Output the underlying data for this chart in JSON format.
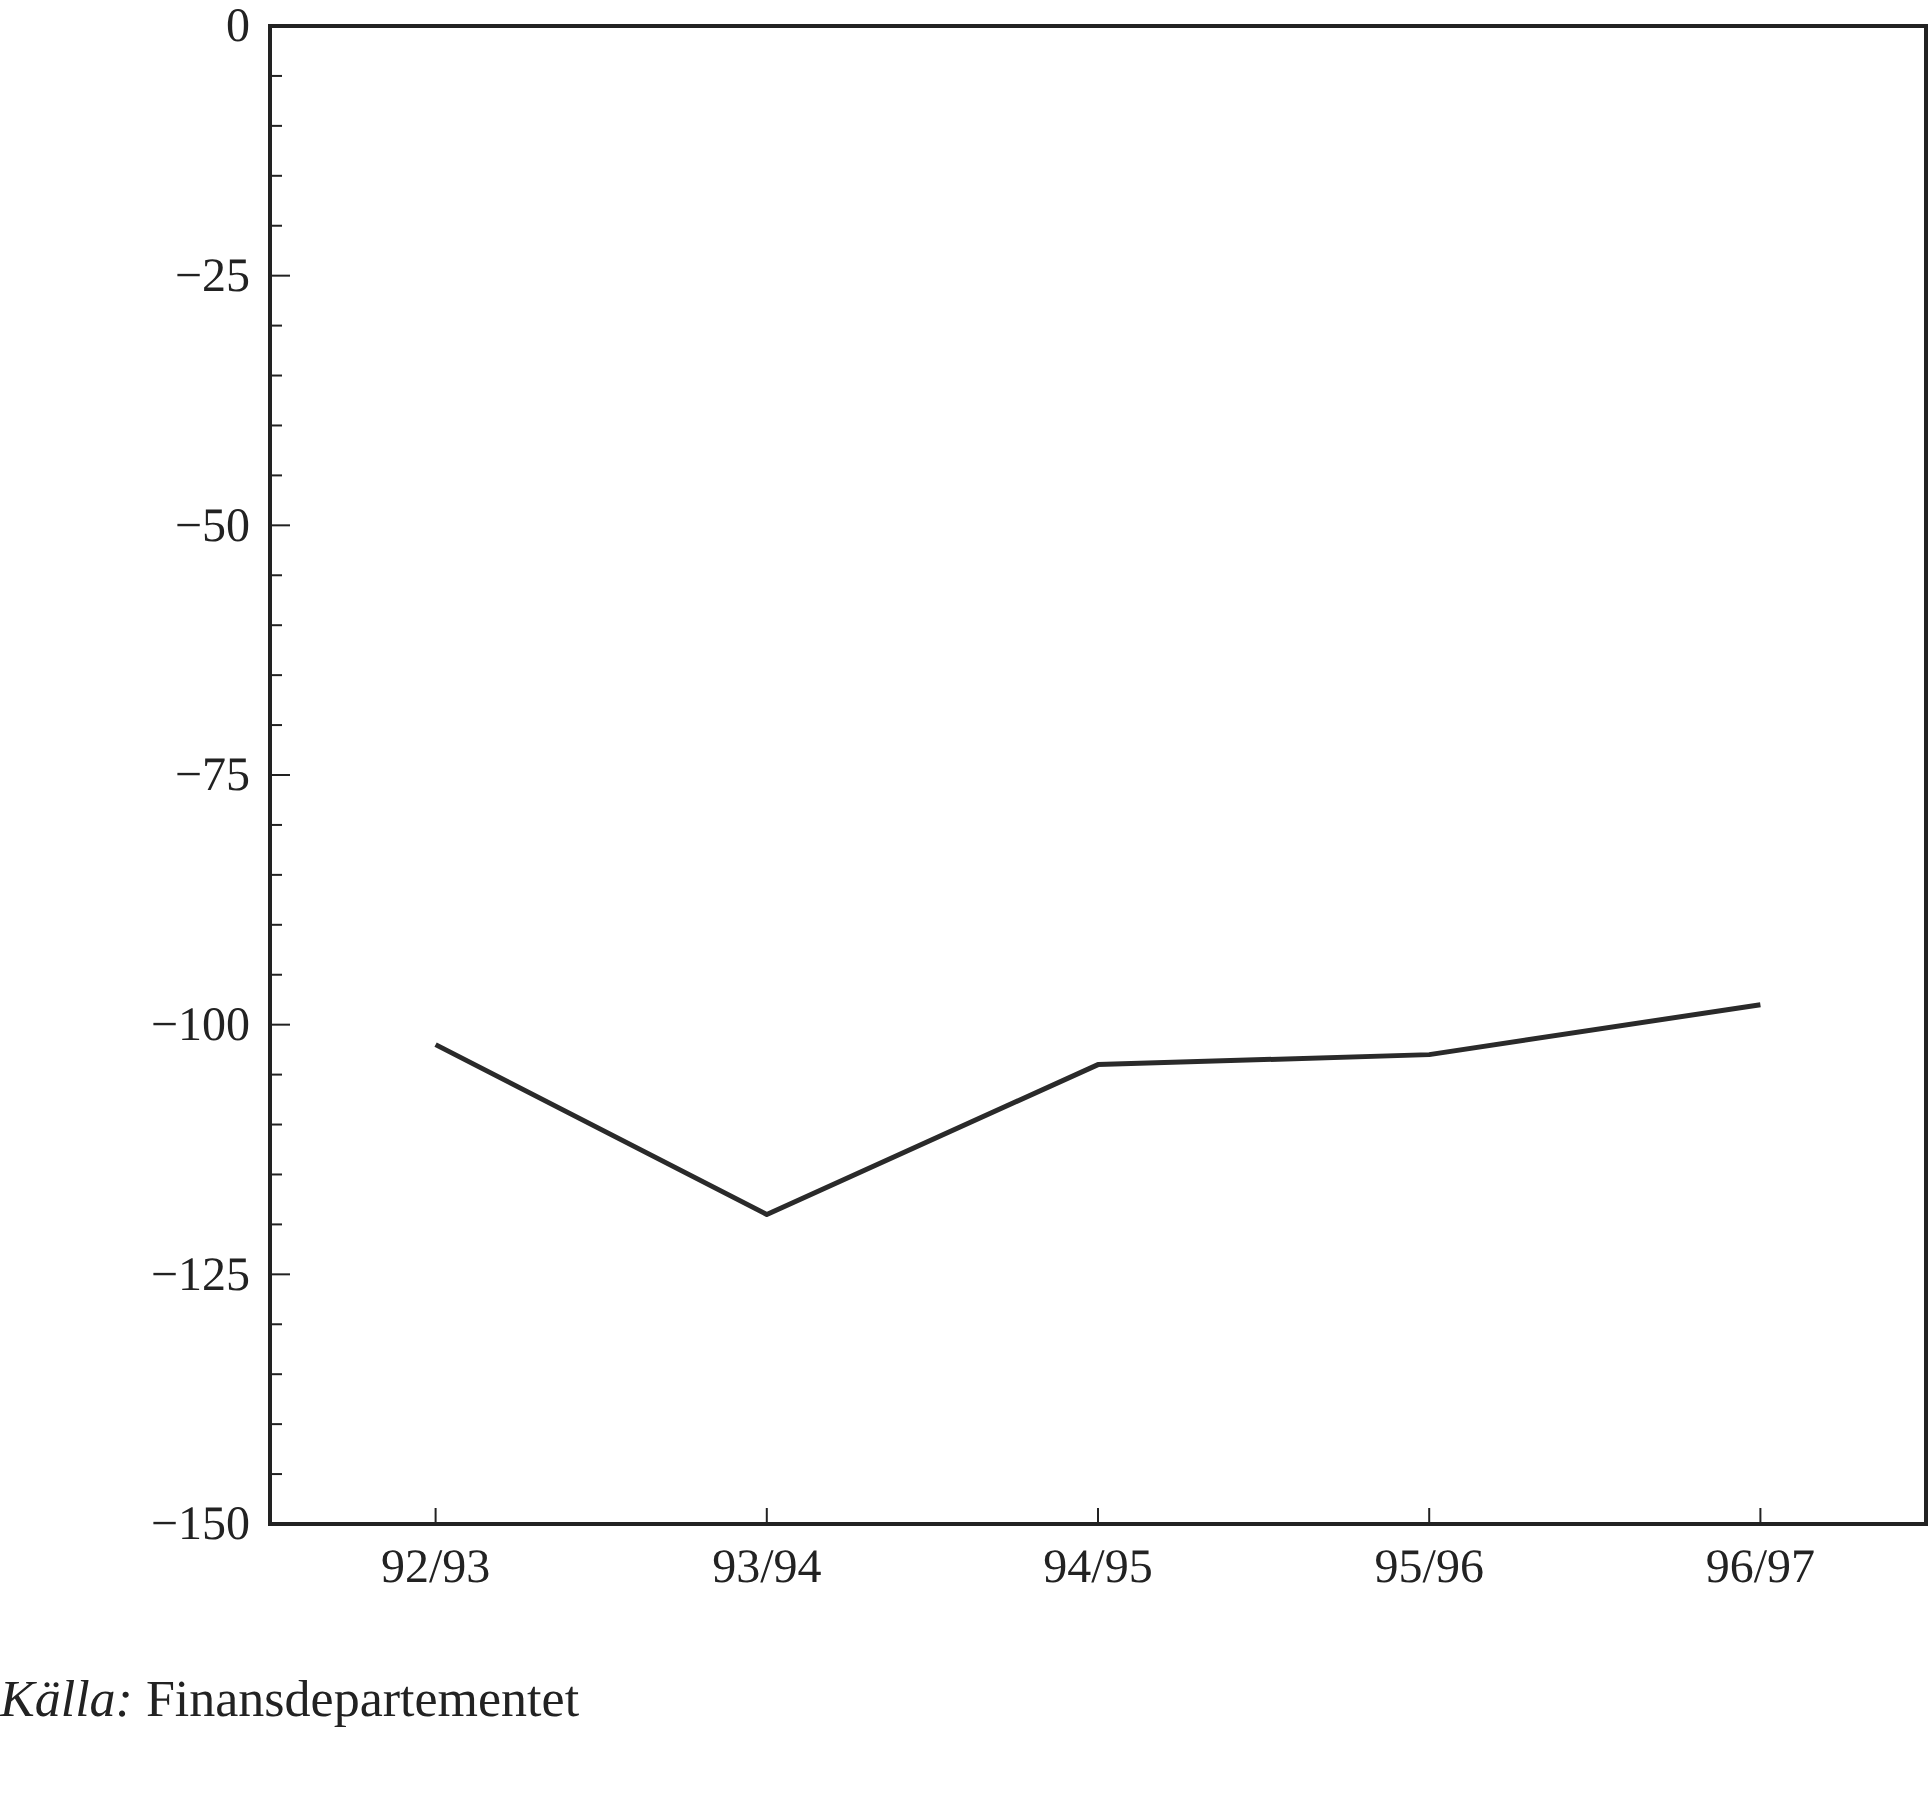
{
  "chart_data": {
    "type": "line",
    "categories": [
      "92/93",
      "93/94",
      "94/95",
      "95/96",
      "96/97"
    ],
    "values": [
      -102,
      -119,
      -104,
      -103,
      -98
    ],
    "color": "#2a2a2a",
    "ylim": [
      -150,
      0
    ],
    "yticks": [
      {
        "value": -150,
        "label": "−150"
      },
      {
        "value": -145,
        "label": null
      },
      {
        "value": -140,
        "label": null
      },
      {
        "value": -135,
        "label": null
      },
      {
        "value": -130,
        "label": null
      },
      {
        "value": -125,
        "label": "−125"
      },
      {
        "value": -120,
        "label": null
      },
      {
        "value": -115,
        "label": null
      },
      {
        "value": -110,
        "label": null
      },
      {
        "value": -105,
        "label": null
      },
      {
        "value": -100,
        "label": "−100"
      },
      {
        "value": -95,
        "label": null
      },
      {
        "value": -90,
        "label": null
      },
      {
        "value": -85,
        "label": null
      },
      {
        "value": -80,
        "label": null
      },
      {
        "value": -75,
        "label": "−75"
      },
      {
        "value": -70,
        "label": null
      },
      {
        "value": -65,
        "label": null
      },
      {
        "value": -60,
        "label": null
      },
      {
        "value": -55,
        "label": null
      },
      {
        "value": -50,
        "label": "−50"
      },
      {
        "value": -45,
        "label": null
      },
      {
        "value": -40,
        "label": null
      },
      {
        "value": -35,
        "label": null
      },
      {
        "value": -30,
        "label": null
      },
      {
        "value": -25,
        "label": "−25"
      },
      {
        "value": -20,
        "label": null
      },
      {
        "value": -15,
        "label": null
      },
      {
        "value": -10,
        "label": null
      },
      {
        "value": -5,
        "label": null
      },
      {
        "value": 0,
        "label": "0"
      }
    ],
    "grid": false,
    "marker": "none",
    "line_style": "solid",
    "annotations": [
      "Källa: Finansdepartementet"
    ]
  }
}
